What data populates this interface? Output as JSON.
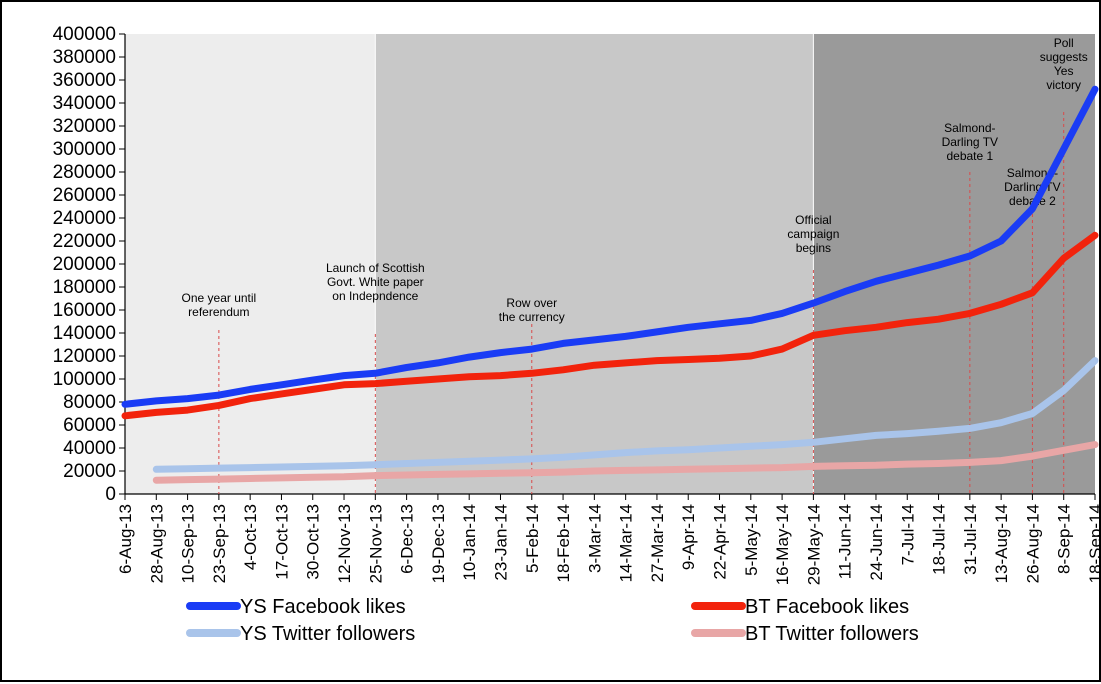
{
  "chart_data": {
    "type": "line",
    "title": "",
    "xlabel": "",
    "ylabel": "",
    "ylim": [
      0,
      400000
    ],
    "yticks": [
      0,
      20000,
      40000,
      60000,
      80000,
      100000,
      120000,
      140000,
      160000,
      180000,
      200000,
      220000,
      240000,
      260000,
      280000,
      300000,
      320000,
      340000,
      360000,
      380000,
      400000
    ],
    "categories": [
      "6-Aug-13",
      "28-Aug-13",
      "10-Sep-13",
      "23-Sep-13",
      "4-Oct-13",
      "17-Oct-13",
      "30-Oct-13",
      "12-Nov-13",
      "25-Nov-13",
      "6-Dec-13",
      "19-Dec-13",
      "10-Jan-14",
      "23-Jan-14",
      "5-Feb-14",
      "18-Feb-14",
      "3-Mar-14",
      "14-Mar-14",
      "27-Mar-14",
      "9-Apr-14",
      "22-Apr-14",
      "5-May-14",
      "16-May-14",
      "29-May-14",
      "11-Jun-14",
      "24-Jun-14",
      "7-Jul-14",
      "18-Jul-14",
      "31-Jul-14",
      "13-Aug-14",
      "26-Aug-14",
      "8-Sep-14",
      "18-Sep-14"
    ],
    "grid": false,
    "legend_position": "bottom",
    "shaded_phases": [
      {
        "from": "6-Aug-13",
        "to": "25-Nov-13",
        "color": "#ededed"
      },
      {
        "from": "25-Nov-13",
        "to": "29-May-14",
        "color": "#c8c8c8"
      },
      {
        "from": "29-May-14",
        "to": "18-Sep-14",
        "color": "#9a9a9a"
      }
    ],
    "annotations": [
      {
        "x": "23-Sep-13",
        "lines": [
          "One year until",
          "referendum"
        ]
      },
      {
        "x": "25-Nov-13",
        "lines": [
          "Launch of Scottish",
          "Govt. White paper",
          "on Indepndence"
        ]
      },
      {
        "x": "5-Feb-14",
        "lines": [
          "Row over",
          "the currency"
        ]
      },
      {
        "x": "29-May-14",
        "lines": [
          "Official",
          "campaign",
          "begins"
        ]
      },
      {
        "x": "31-Jul-14",
        "lines": [
          "Salmond-",
          "Darling TV",
          "debate 1"
        ]
      },
      {
        "x": "26-Aug-14",
        "lines": [
          "Salmond-",
          "Darling TV",
          "debate 2"
        ]
      },
      {
        "x": "8-Sep-14",
        "lines": [
          "Poll",
          "suggests",
          "Yes",
          "victory"
        ]
      }
    ],
    "series": [
      {
        "name": "YS Facebook likes",
        "color": "#1a3cf5",
        "values": [
          78000,
          81000,
          83000,
          86000,
          91000,
          95000,
          99000,
          103000,
          105000,
          110000,
          114000,
          119000,
          123000,
          126000,
          131000,
          134000,
          137000,
          141000,
          145000,
          148000,
          151000,
          157000,
          166000,
          176000,
          185000,
          192000,
          199000,
          207000,
          220000,
          248000,
          300000,
          352000
        ]
      },
      {
        "name": "BT Facebook likes",
        "color": "#f2230c",
        "values": [
          68000,
          71000,
          73000,
          77000,
          83000,
          87000,
          91000,
          95000,
          96000,
          98000,
          100000,
          102000,
          103000,
          105000,
          108000,
          112000,
          114000,
          116000,
          117000,
          118000,
          120000,
          126000,
          138000,
          142000,
          145000,
          149000,
          152000,
          157000,
          165000,
          175000,
          205000,
          225000
        ]
      },
      {
        "name": "YS Twitter followers",
        "color": "#a9c4ea",
        "values": [
          null,
          21500,
          22000,
          22500,
          23000,
          23500,
          24000,
          24500,
          25500,
          26500,
          27500,
          28500,
          29500,
          30500,
          32000,
          34000,
          36000,
          37500,
          38500,
          40000,
          41500,
          43000,
          45000,
          48000,
          51000,
          52500,
          54500,
          57000,
          62000,
          70000,
          90000,
          116000
        ]
      },
      {
        "name": "BT Twitter followers",
        "color": "#e8a6a6",
        "values": [
          null,
          12000,
          12500,
          13000,
          13500,
          14000,
          14500,
          15000,
          16000,
          16500,
          17000,
          17500,
          18000,
          18500,
          19000,
          20000,
          20500,
          21000,
          21500,
          22000,
          22500,
          23000,
          24000,
          24500,
          25000,
          26000,
          26500,
          27500,
          29000,
          33000,
          38000,
          43000
        ]
      }
    ]
  }
}
